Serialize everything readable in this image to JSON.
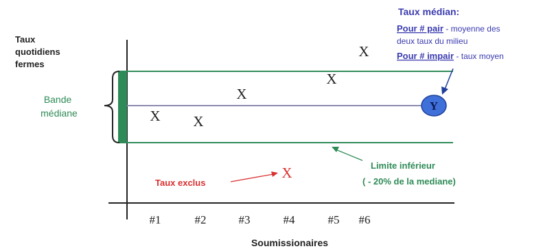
{
  "y_axis_label": [
    "Taux",
    "quotidiens",
    "fermes"
  ],
  "x_axis_label": "Soumissionaires",
  "band_label": [
    "Bande",
    "médiane"
  ],
  "median_note": {
    "title": "Taux médian:",
    "even_lead": "Pour # pair",
    "even_text": " - moyenne des",
    "even_text_2": "deux taux du milieu",
    "odd_lead": "Pour # impair",
    "odd_text": " - taux moyen"
  },
  "lower_limit": [
    "Limite inférieur",
    "( - 20% de la mediane)"
  ],
  "excluded_label": "Taux exclus",
  "median_marker": "Y",
  "point_marker": "X",
  "bidders": [
    "#1",
    "#2",
    "#3",
    "#4",
    "#5",
    "#6"
  ],
  "colors": {
    "green": "#2e8b57",
    "blue": "#3a3ab0",
    "red": "#d93030",
    "median_line": "#8a8ab0",
    "marker_fill": "#3f6fd8"
  }
}
